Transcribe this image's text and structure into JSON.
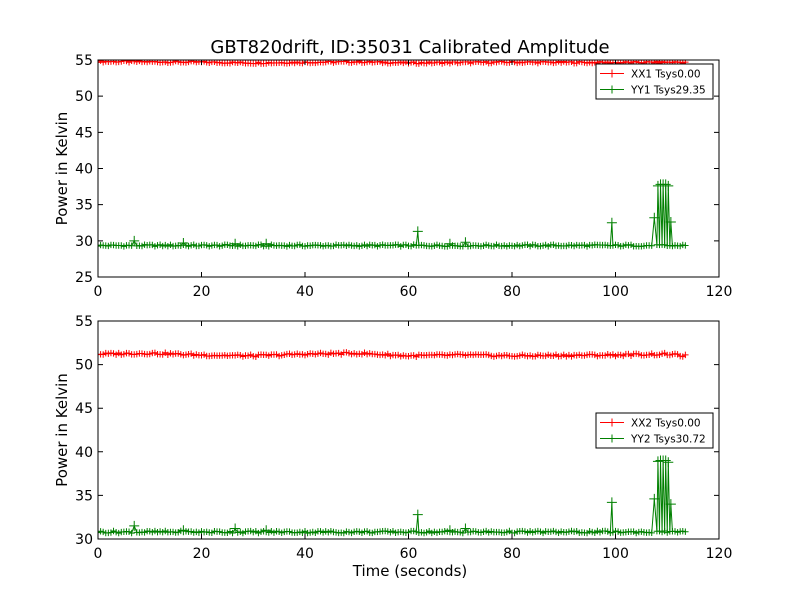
{
  "figure": {
    "title": "GBT820drift, ID:35031 Calibrated Amplitude",
    "xlabel": "Time (seconds)"
  },
  "colors": {
    "red": "#ff0000",
    "green": "#008000",
    "axis": "#000000"
  },
  "chart_data": [
    {
      "type": "line",
      "ylabel": "Power in Kelvin",
      "xlim": [
        0,
        120
      ],
      "ylim": [
        25,
        55
      ],
      "xticks": [
        0,
        20,
        40,
        60,
        80,
        100,
        120
      ],
      "yticks": [
        25,
        30,
        35,
        40,
        45,
        50,
        55
      ],
      "grid": false,
      "legend_position": "top-right",
      "x_range": [
        0,
        113.5
      ],
      "series": [
        {
          "name": "XX1 Tsys0.00",
          "color": "#ff0000",
          "baseline": 54.7,
          "segments": [
            [
              0,
              54.8
            ],
            [
              20,
              54.7
            ],
            [
              30,
              54.6
            ],
            [
              50,
              54.75
            ],
            [
              60,
              54.6
            ],
            [
              80,
              54.7
            ],
            [
              100,
              54.65
            ],
            [
              113.5,
              54.7
            ]
          ],
          "spikes": []
        },
        {
          "name": "YY1 Tsys29.35",
          "color": "#008000",
          "baseline": 29.35,
          "segments": [],
          "spikes": [
            [
              7.0,
              30.0
            ],
            [
              16.5,
              29.7
            ],
            [
              26.5,
              29.6
            ],
            [
              32.5,
              29.6
            ],
            [
              61.8,
              31.3
            ],
            [
              68.0,
              29.6
            ],
            [
              71.0,
              29.8
            ],
            [
              99.3,
              32.5
            ],
            [
              107.5,
              33.2
            ],
            [
              108.2,
              37.6
            ],
            [
              108.7,
              37.8
            ],
            [
              109.2,
              37.8
            ],
            [
              109.7,
              37.8
            ],
            [
              110.2,
              37.6
            ],
            [
              110.7,
              32.6
            ]
          ]
        }
      ]
    },
    {
      "type": "line",
      "ylabel": "Power in Kelvin",
      "xlim": [
        0,
        120
      ],
      "ylim": [
        30,
        55
      ],
      "xticks": [
        0,
        20,
        40,
        60,
        80,
        100,
        120
      ],
      "yticks": [
        30,
        35,
        40,
        45,
        50,
        55
      ],
      "grid": false,
      "legend_position": "right",
      "x_range": [
        0,
        113.5
      ],
      "series": [
        {
          "name": "XX2 Tsys0.00",
          "color": "#ff0000",
          "baseline": 51.2,
          "segments": [
            [
              0,
              51.2
            ],
            [
              10,
              51.3
            ],
            [
              20,
              51.1
            ],
            [
              30,
              51.0
            ],
            [
              40,
              51.2
            ],
            [
              50,
              51.3
            ],
            [
              60,
              51.0
            ],
            [
              70,
              51.1
            ],
            [
              80,
              51.0
            ],
            [
              100,
              51.1
            ],
            [
              110,
              51.2
            ],
            [
              113.5,
              51.0
            ]
          ],
          "spikes": []
        },
        {
          "name": "YY2 Tsys30.72",
          "color": "#008000",
          "baseline": 30.8,
          "segments": [],
          "spikes": [
            [
              7.0,
              31.5
            ],
            [
              16.5,
              31.0
            ],
            [
              26.5,
              31.2
            ],
            [
              32.5,
              31.0
            ],
            [
              61.8,
              32.8
            ],
            [
              68.0,
              31.0
            ],
            [
              71.0,
              31.2
            ],
            [
              99.3,
              34.2
            ],
            [
              107.5,
              34.6
            ],
            [
              108.2,
              38.9
            ],
            [
              108.7,
              39.0
            ],
            [
              109.2,
              39.0
            ],
            [
              109.7,
              39.0
            ],
            [
              110.2,
              38.8
            ],
            [
              110.7,
              34.0
            ]
          ]
        }
      ]
    }
  ]
}
